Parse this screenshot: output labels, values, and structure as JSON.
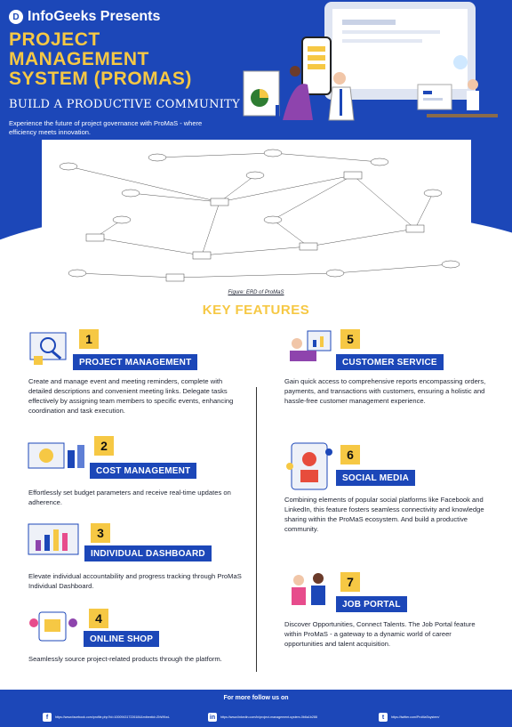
{
  "header": {
    "brand": "InfoGeeks Presents",
    "title_lines": [
      "PROJECT",
      "MANAGEMENT",
      "SYSTEM (PROMAS)"
    ],
    "subtitle": "BUILD A PRODUCTIVE COMMUNITY",
    "tagline": "Experience the future of project governance with ProMaS - where efficiency meets innovation."
  },
  "erd": {
    "caption": "Figure: ERD of ProMaS"
  },
  "key_features": {
    "title": "KEY FEATURES",
    "items": [
      {
        "num": "1",
        "label": "PROJECT MANAGEMENT",
        "desc": "Create and manage event and meeting reminders, complete with detailed descriptions and convenient meeting links. Delegate tasks effectively by assigning team members to specific events, enhancing coordination and task execution."
      },
      {
        "num": "2",
        "label": "COST MANAGEMENT",
        "desc": "Effortlessly set budget parameters and receive real-time updates on adherence."
      },
      {
        "num": "3",
        "label": "INDIVIDUAL DASHBOARD",
        "desc": "Elevate individual accountability and progress tracking through ProMaS Individual Dashboard."
      },
      {
        "num": "4",
        "label": "ONLINE SHOP",
        "desc": "Seamlessly source project-related products through the platform."
      },
      {
        "num": "5",
        "label": "CUSTOMER SERVICE",
        "desc": "Gain quick access to comprehensive reports encompassing orders, payments, and transactions with customers, ensuring a holistic and hassle-free customer management experience."
      },
      {
        "num": "6",
        "label": "SOCIAL MEDIA",
        "desc": "Combining elements of popular social platforms like Facebook and LinkedIn, this feature fosters seamless connectivity and knowledge sharing within the ProMaS ecosystem. And build a productive community."
      },
      {
        "num": "7",
        "label": "JOB PORTAL",
        "desc": "Discover Opportunities, Connect Talents. The Job Portal feature within ProMaS - a gateway to a dynamic world of career opportunities and talent acquisition."
      }
    ]
  },
  "footer": {
    "title": "For more follow us on",
    "links": [
      {
        "icon": "facebook-icon",
        "glyph": "f",
        "url": "https://www.facebook.com/profile.php?id=100094317226184&mibextid=ZbWKwL"
      },
      {
        "icon": "linkedin-icon",
        "glyph": "in",
        "url": "https://www.linkedin.com/in/project-management-system-0b6a1b288"
      },
      {
        "icon": "twitter-icon",
        "glyph": "t",
        "url": "https://twitter.com/ProMaSsystem/"
      }
    ]
  },
  "colors": {
    "primary": "#1c47b8",
    "accent": "#f6c844"
  }
}
